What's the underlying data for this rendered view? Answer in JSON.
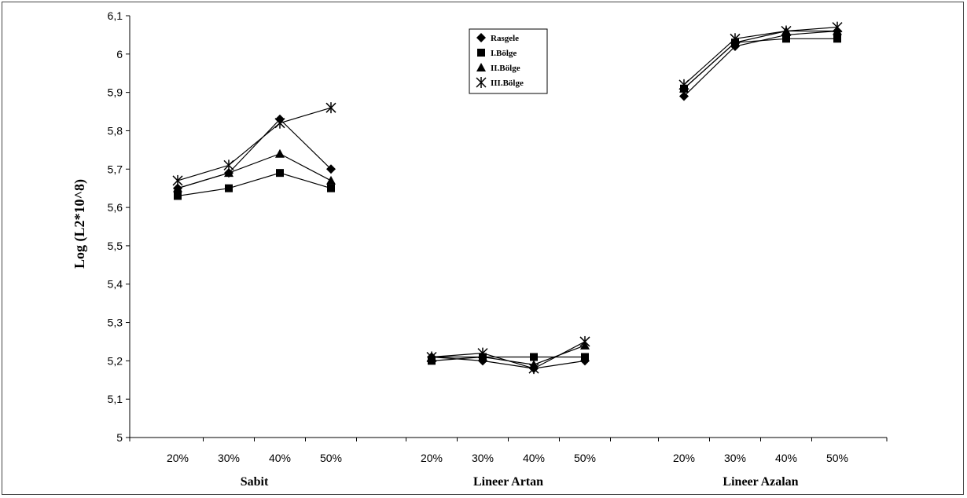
{
  "chart_data": {
    "type": "line",
    "ylabel": "Log (L2*10^8)",
    "ylim": [
      5,
      6.1
    ],
    "yticks": [
      "5",
      "5,1",
      "5,2",
      "5,3",
      "5,4",
      "5,5",
      "5,6",
      "5,7",
      "5,8",
      "5,9",
      "6",
      "6,1"
    ],
    "grid": false,
    "legend_position": "top-center",
    "groups": [
      {
        "label": "Sabit",
        "categories": [
          "20%",
          "30%",
          "40%",
          "50%"
        ]
      },
      {
        "label": "Lineer Artan",
        "categories": [
          "20%",
          "30%",
          "40%",
          "50%"
        ]
      },
      {
        "label": "Lineer Azalan",
        "categories": [
          "20%",
          "30%",
          "40%",
          "50%"
        ]
      }
    ],
    "series": [
      {
        "name": "Rasgele",
        "marker": "diamond",
        "values": [
          [
            5.65,
            5.69,
            5.83,
            5.7
          ],
          [
            5.21,
            5.2,
            5.18,
            5.2
          ],
          [
            5.89,
            6.02,
            6.05,
            6.06
          ]
        ]
      },
      {
        "name": "I.Bölge",
        "marker": "square",
        "values": [
          [
            5.63,
            5.65,
            5.69,
            5.65
          ],
          [
            5.2,
            5.21,
            5.21,
            5.21
          ],
          [
            5.91,
            6.03,
            6.04,
            6.04
          ]
        ]
      },
      {
        "name": "II.Bölge",
        "marker": "triangle",
        "values": [
          [
            5.65,
            5.69,
            5.74,
            5.67
          ],
          [
            5.21,
            5.21,
            5.19,
            5.24
          ],
          [
            5.91,
            6.03,
            6.06,
            6.06
          ]
        ]
      },
      {
        "name": "III.Bölge",
        "marker": "asterisk",
        "values": [
          [
            5.67,
            5.71,
            5.82,
            5.86
          ],
          [
            5.21,
            5.22,
            5.18,
            5.25
          ],
          [
            5.92,
            6.04,
            6.06,
            6.07
          ]
        ]
      }
    ]
  }
}
